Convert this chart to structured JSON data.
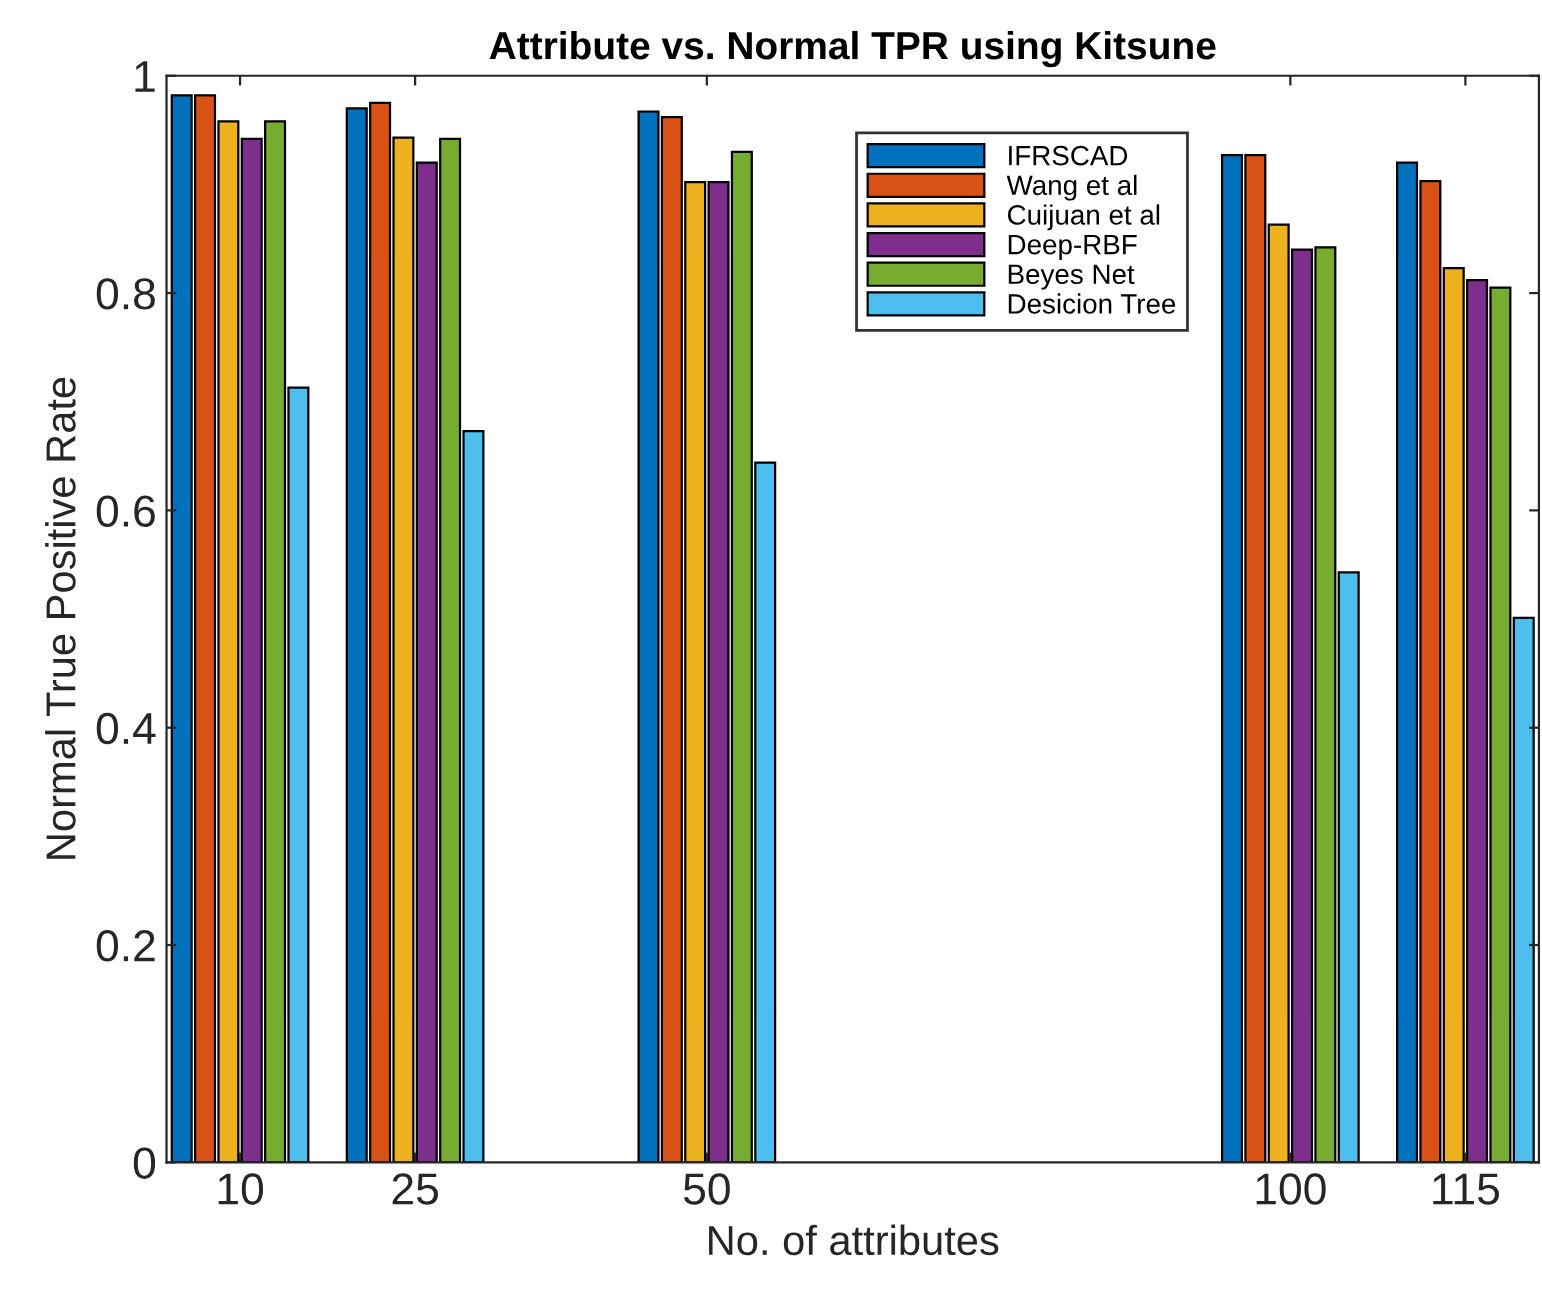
{
  "chart_data": {
    "type": "bar",
    "title": "Attribute vs. Normal TPR using Kitsune",
    "xlabel": "No. of attributes",
    "ylabel": "Normal True Positive Rate",
    "x": [
      10,
      25,
      50,
      100,
      115
    ],
    "series": [
      {
        "name": "IFRSCAD",
        "color": "#0072bd",
        "values": [
          0.982,
          0.97,
          0.967,
          0.927,
          0.92
        ]
      },
      {
        "name": "Wang et al",
        "color": "#d95319",
        "values": [
          0.982,
          0.975,
          0.962,
          0.927,
          0.903
        ]
      },
      {
        "name": "Cuijuan et al",
        "color": "#edb120",
        "values": [
          0.958,
          0.943,
          0.902,
          0.863,
          0.823
        ]
      },
      {
        "name": "Deep-RBF",
        "color": "#7e2f8e",
        "values": [
          0.942,
          0.92,
          0.902,
          0.84,
          0.812
        ]
      },
      {
        "name": "Beyes Net",
        "color": "#77ac30",
        "values": [
          0.958,
          0.942,
          0.93,
          0.842,
          0.805
        ]
      },
      {
        "name": "Desicion Tree",
        "color": "#4dbeee",
        "values": [
          0.713,
          0.673,
          0.644,
          0.543,
          0.501
        ]
      }
    ],
    "xlim": [
      3.7,
      121.3
    ],
    "ylim": [
      0,
      1
    ],
    "xticks": [
      10,
      25,
      50,
      100,
      115
    ],
    "yticks": [
      0,
      0.2,
      0.4,
      0.6,
      0.8,
      1
    ],
    "legend": "top right",
    "grid": false
  }
}
